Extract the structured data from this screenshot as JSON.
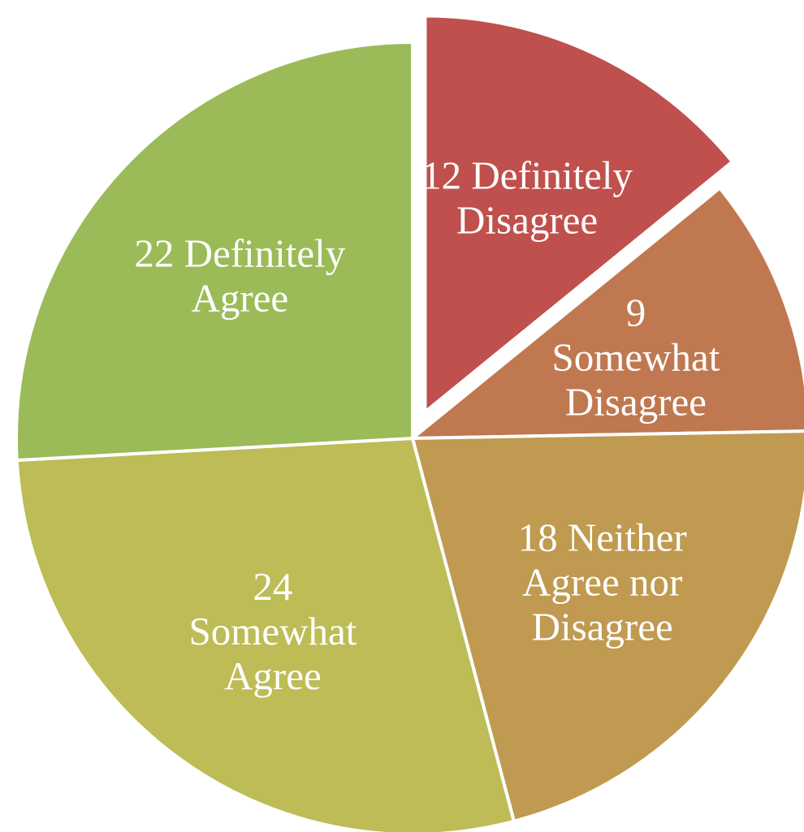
{
  "chart_data": {
    "type": "pie",
    "title": "",
    "slices": [
      {
        "value": 12,
        "label_lines": [
          "12 Definitely",
          "Disagree"
        ],
        "color": "#C0504D",
        "exploded": true
      },
      {
        "value": 9,
        "label_lines": [
          "9",
          "Somewhat",
          "Disagree"
        ],
        "color": "#C07850"
      },
      {
        "value": 18,
        "label_lines": [
          "18 Neither",
          "Agree nor",
          "Disagree"
        ],
        "color": "#BF9A50"
      },
      {
        "value": 24,
        "label_lines": [
          "24",
          "Somewhat",
          "Agree"
        ],
        "color": "#BDBC56"
      },
      {
        "value": 22,
        "label_lines": [
          "22 Definitely",
          "Agree"
        ],
        "color": "#9BBB59"
      }
    ]
  }
}
